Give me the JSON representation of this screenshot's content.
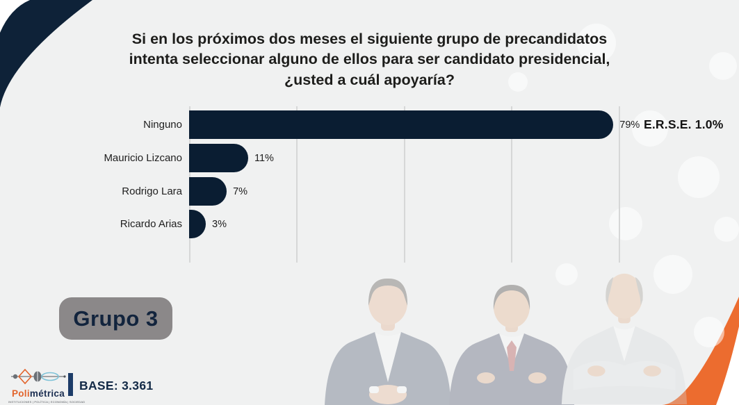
{
  "slide": {
    "title_lines": [
      "Si en los próximos dos meses el siguiente grupo de precandidatos",
      "intenta seleccionar alguno de ellos para ser candidato presidencial,",
      "¿usted a cuál apoyaría?"
    ],
    "group_label": "Grupo 3",
    "base_label": "BASE: 3.361",
    "erse_label": "E.R.S.E. 1.0%"
  },
  "chart_data": {
    "type": "bar",
    "orientation": "horizontal",
    "title": "Si en los próximos dos meses el siguiente grupo de precandidatos intenta seleccionar alguno de ellos para ser candidato presidencial, ¿usted a cuál apoyaría?",
    "categories": [
      "Ninguno",
      "Mauricio Lizcano",
      "Rodrigo Lara",
      "Ricardo Arias"
    ],
    "values": [
      79,
      11,
      7,
      3
    ],
    "value_labels": [
      "79%",
      "11%",
      "7%",
      "3%"
    ],
    "annotation": "E.R.S.E. 1.0%",
    "xlim": [
      0,
      80
    ],
    "gridline_values": [
      0,
      20,
      40,
      60,
      80
    ],
    "grid": true,
    "legend": "none",
    "bar_color": "#0a1d32"
  },
  "logo": {
    "brand_orange": "Poli",
    "brand_navy": "métrica",
    "tagline": "INSTITUCIONES | POLÍTICA | ECONOMÍA | SOCIEDAD"
  },
  "candidate_photos": [
    "mauricio-lizcano",
    "rodrigo-lara",
    "ricardo-arias"
  ],
  "colors": {
    "navy": "#0a1d32",
    "orange": "#ec6c2f",
    "background_gray": "#f0f1f1",
    "gridline": "#d6d7d7",
    "group_box_gray": "#8b8889"
  }
}
